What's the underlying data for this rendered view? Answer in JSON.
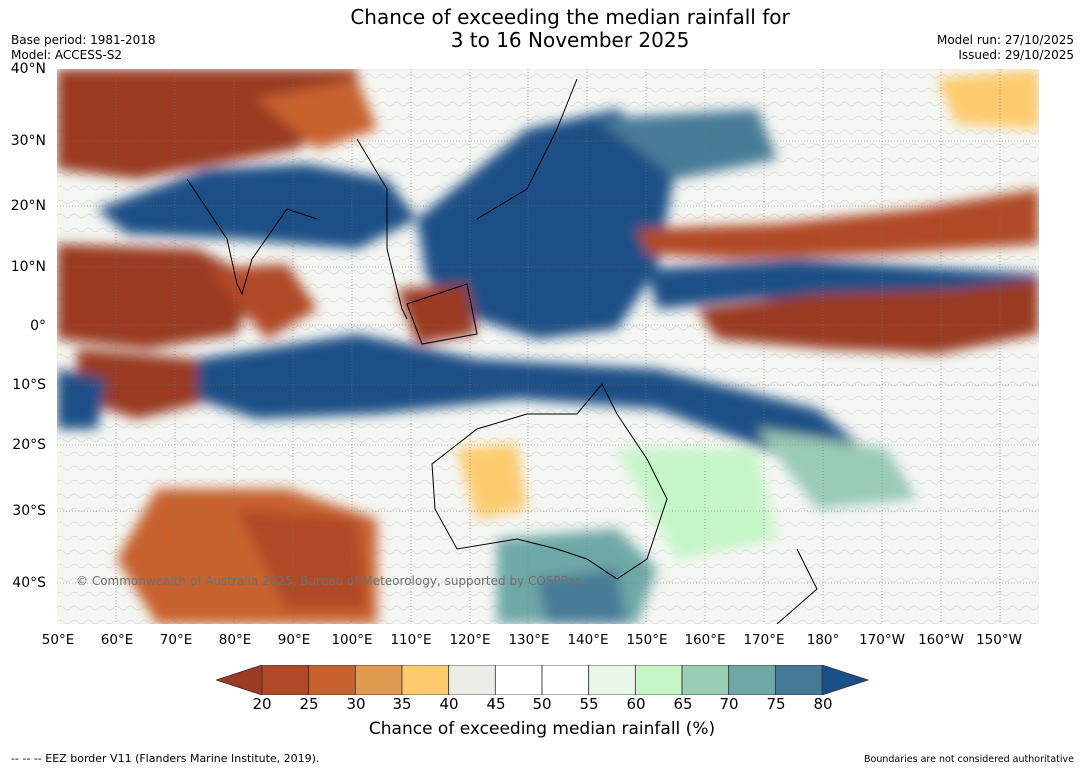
{
  "header": {
    "title_line1": "Chance of exceeding the median rainfall for",
    "title_line2": "3 to 16 November 2025",
    "base_period": "Base period: 1981-2018",
    "model": "Model: ACCESS-S2",
    "model_run": "Model run: 27/10/2025",
    "issued": "Issued: 29/10/2025"
  },
  "map": {
    "lat_labels": [
      "40°N",
      "30°N",
      "20°N",
      "10°N",
      "0°",
      "10°S",
      "20°S",
      "30°S",
      "40°S"
    ],
    "lon_labels": [
      "50°E",
      "60°E",
      "70°E",
      "80°E",
      "90°E",
      "100°E",
      "110°E",
      "120°E",
      "130°E",
      "140°E",
      "150°E",
      "160°E",
      "170°E",
      "180°",
      "170°W",
      "160°W",
      "150°W"
    ],
    "copyright": "© Commonwealth of Australia 2025, Bureau of Meteorology, supported by COSPPac"
  },
  "legend": {
    "ticks": [
      "20",
      "25",
      "30",
      "35",
      "40",
      "45",
      "50",
      "55",
      "60",
      "65",
      "70",
      "75",
      "80"
    ],
    "colors": [
      "#9a3b22",
      "#b04a26",
      "#c7622f",
      "#e09a50",
      "#fdcb6e",
      "#ecebe6",
      "#ffffff",
      "#ffffff",
      "#e9f6ea",
      "#c6f6c8",
      "#9acbb5",
      "#6ea8a6",
      "#467b98",
      "#1a4f86"
    ],
    "label": "Chance of exceeding median rainfall (%)"
  },
  "footer": {
    "eez": "--  --  -- EEZ border V11 (Flanders Marine Institute, 2019).",
    "disclaimer": "Boundaries are not considered authoritative"
  }
}
